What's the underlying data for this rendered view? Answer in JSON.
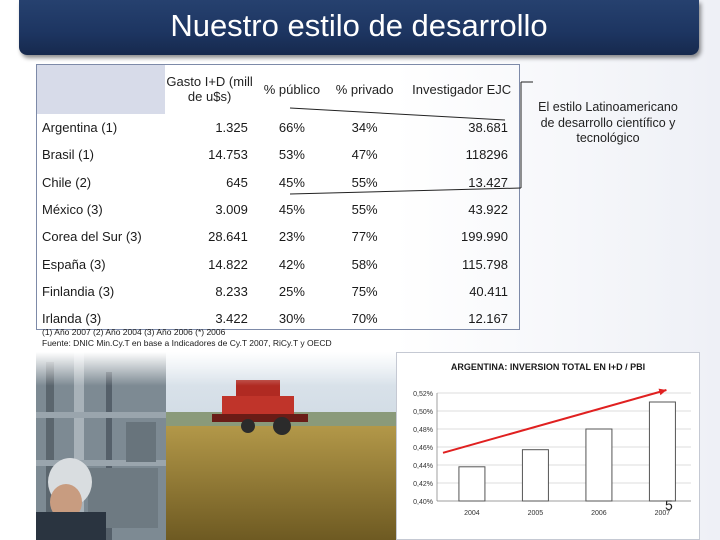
{
  "slide": {
    "title": "Nuestro estilo de desarrollo",
    "page_number": "5",
    "side_note": "El estilo Latinoamericano de desarrollo científico y tecnológico"
  },
  "table": {
    "headers": [
      "",
      "Gasto I+D (mill de u$s)",
      "% público",
      "% privado",
      "Investigador EJC"
    ],
    "rows": [
      {
        "country": "Argentina (1)",
        "gasto": "1.325",
        "publico": "66%",
        "privado": "34%",
        "investigador": "38.681"
      },
      {
        "country": "Brasil (1)",
        "gasto": "14.753",
        "publico": "53%",
        "privado": "47%",
        "investigador": "118296"
      },
      {
        "country": "Chile (2)",
        "gasto": "645",
        "publico": "45%",
        "privado": "55%",
        "investigador": "13.427"
      },
      {
        "country": "México (3)",
        "gasto": "3.009",
        "publico": "45%",
        "privado": "55%",
        "investigador": "43.922"
      },
      {
        "country": "Corea del Sur (3)",
        "gasto": "28.641",
        "publico": "23%",
        "privado": "77%",
        "investigador": "199.990"
      },
      {
        "country": "España (3)",
        "gasto": "14.822",
        "publico": "42%",
        "privado": "58%",
        "investigador": "115.798"
      },
      {
        "country": "Finlandia (3)",
        "gasto": "8.233",
        "publico": "25%",
        "privado": "75%",
        "investigador": "40.411"
      },
      {
        "country": "Irlanda (3)",
        "gasto": "3.422",
        "publico": "30%",
        "privado": "70%",
        "investigador": "12.167"
      }
    ],
    "note_1": "(1) Año 2007 (2) Año 2004 (3) Año 2006 (*) 2006",
    "note_2": "Fuente: DNIC Min.Cy.T en base a Indicadores de Cy.T 2007, RiCy.T y OECD"
  },
  "chart_data": {
    "type": "bar",
    "title": "ARGENTINA: INVERSION TOTAL EN I+D / PBI",
    "categories": [
      "2004",
      "2005",
      "2006",
      "2007"
    ],
    "values": [
      0.438,
      0.457,
      0.48,
      0.51
    ],
    "ylim": [
      0.4,
      0.52
    ],
    "yticks": [
      "0,40%",
      "0,42%",
      "0,44%",
      "0,46%",
      "0,48%",
      "0,50%",
      "0,52%"
    ],
    "ytick_values": [
      0.4,
      0.42,
      0.44,
      0.46,
      0.48,
      0.5,
      0.52
    ],
    "grid": true,
    "bar_color": "#ffffff",
    "bar_stroke": "#555555",
    "trend_color": "#e02020"
  }
}
